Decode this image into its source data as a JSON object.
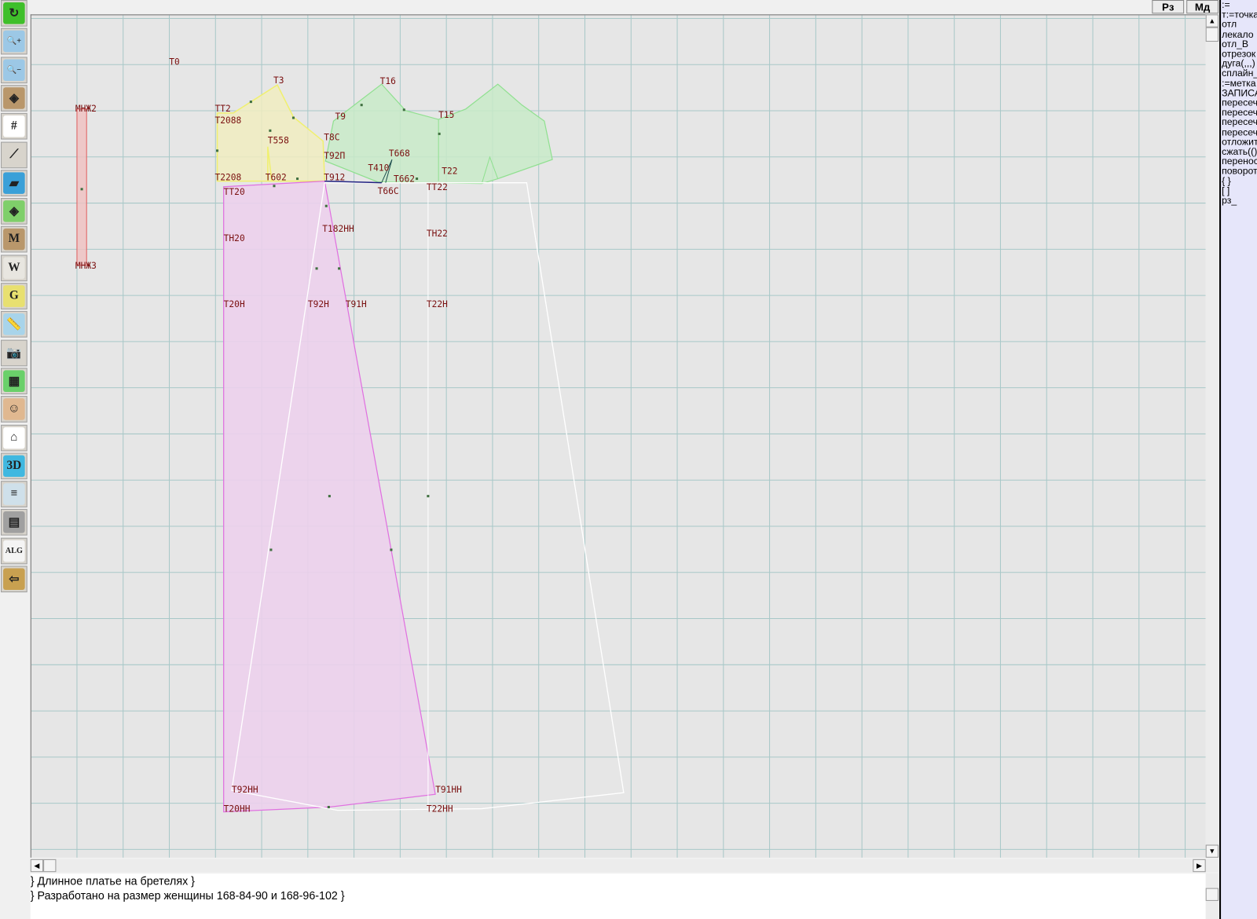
{
  "toolbar": {
    "tools": [
      {
        "icon": "refresh-icon",
        "glyph": "↻",
        "color": "#3fbf2a"
      },
      {
        "icon": "zoom-in-icon",
        "glyph": "🔍+",
        "color": "#9cc8e6"
      },
      {
        "icon": "zoom-out-icon",
        "glyph": "🔍−",
        "color": "#9cc8e6"
      },
      {
        "icon": "zoom-pattern-icon",
        "glyph": "◈",
        "color": "#b9976b"
      },
      {
        "icon": "grid-icon",
        "glyph": "#",
        "color": "#ffffff"
      },
      {
        "icon": "line-segment-icon",
        "glyph": "⟋",
        "color": "#d8d4cc"
      },
      {
        "icon": "map-icon",
        "glyph": "▰",
        "color": "#3aa0d8"
      },
      {
        "icon": "pattern-piece-icon",
        "glyph": "◈",
        "color": "#7fcf6a"
      },
      {
        "icon": "pattern-m-icon",
        "glyph": "M",
        "color": "#b9976b"
      },
      {
        "icon": "compass-icon",
        "glyph": "W",
        "color": "#e8e6e0"
      },
      {
        "icon": "pattern-g-icon",
        "glyph": "G",
        "color": "#e8e070"
      },
      {
        "icon": "ruler-icon",
        "glyph": "📏",
        "color": "#a8d4ea"
      },
      {
        "icon": "camera-icon",
        "glyph": "📷",
        "color": "#d8d4cc"
      },
      {
        "icon": "spreadsheet-icon",
        "glyph": "▦",
        "color": "#6ad06a"
      },
      {
        "icon": "woman-portrait-icon",
        "glyph": "☺",
        "color": "#e0b890"
      },
      {
        "icon": "jacket-icon",
        "glyph": "⌂",
        "color": "#ffffff"
      },
      {
        "icon": "3d-icon",
        "glyph": "3D",
        "color": "#40b8e0"
      },
      {
        "icon": "text-list-icon",
        "glyph": "≡",
        "color": "#cfe0ea"
      },
      {
        "icon": "books-icon",
        "glyph": "▤",
        "color": "#a0a0a0"
      },
      {
        "icon": "alg-document-icon",
        "glyph": "ALG",
        "color": "#f4f4f4"
      },
      {
        "icon": "exit-door-icon",
        "glyph": "⇦",
        "color": "#c8a050"
      }
    ]
  },
  "top_buttons": {
    "rz": "Рз",
    "md": "Мд"
  },
  "right_panel": {
    "items": [
      ":=",
      "т:=точка",
      "отл",
      "лекало",
      "отл_В",
      "отрезок",
      "дуга(,,,)",
      "сплайн_",
      ":=метка",
      "ЗАПИСА",
      "пересеч",
      "пересеч",
      "пересеч",
      "пересеч",
      "отложит",
      "сжать(()",
      "перенос",
      "поворот",
      "{ }",
      "[ ]",
      "рз_"
    ]
  },
  "bottom_text": {
    "lines": [
      "} Длинное платье на бретелях }",
      "} Разработано на размер женщины 168-84-90 и 168-96-102 }"
    ]
  },
  "drawing": {
    "labels": [
      "Т0",
      "Т3",
      "Т16",
      "МНЖ2",
      "ТТ2",
      "Т2088",
      "Т9",
      "Т15",
      "Т8С",
      "Т558",
      "Т92П",
      "Т668",
      "Т2208",
      "Т602",
      "Т912",
      "Т410",
      "Т662",
      "Т22",
      "ТТ20",
      "Т66С",
      "ТТ22",
      "Т182НН",
      "ТН20",
      "ТН22",
      "МНЖ3",
      "Т20Н",
      "Т92Н",
      "Т91Н",
      "Т22Н",
      "Т92НН",
      "Т91НН",
      "Т20НН",
      "Т22НН"
    ],
    "colors": {
      "front": "#f0ecc0",
      "back": "#c8eac8",
      "skirt": "#ecd0ec",
      "strap": "#f0c0c0",
      "label": "#7a1010",
      "grid": "#a8c8c8"
    }
  }
}
